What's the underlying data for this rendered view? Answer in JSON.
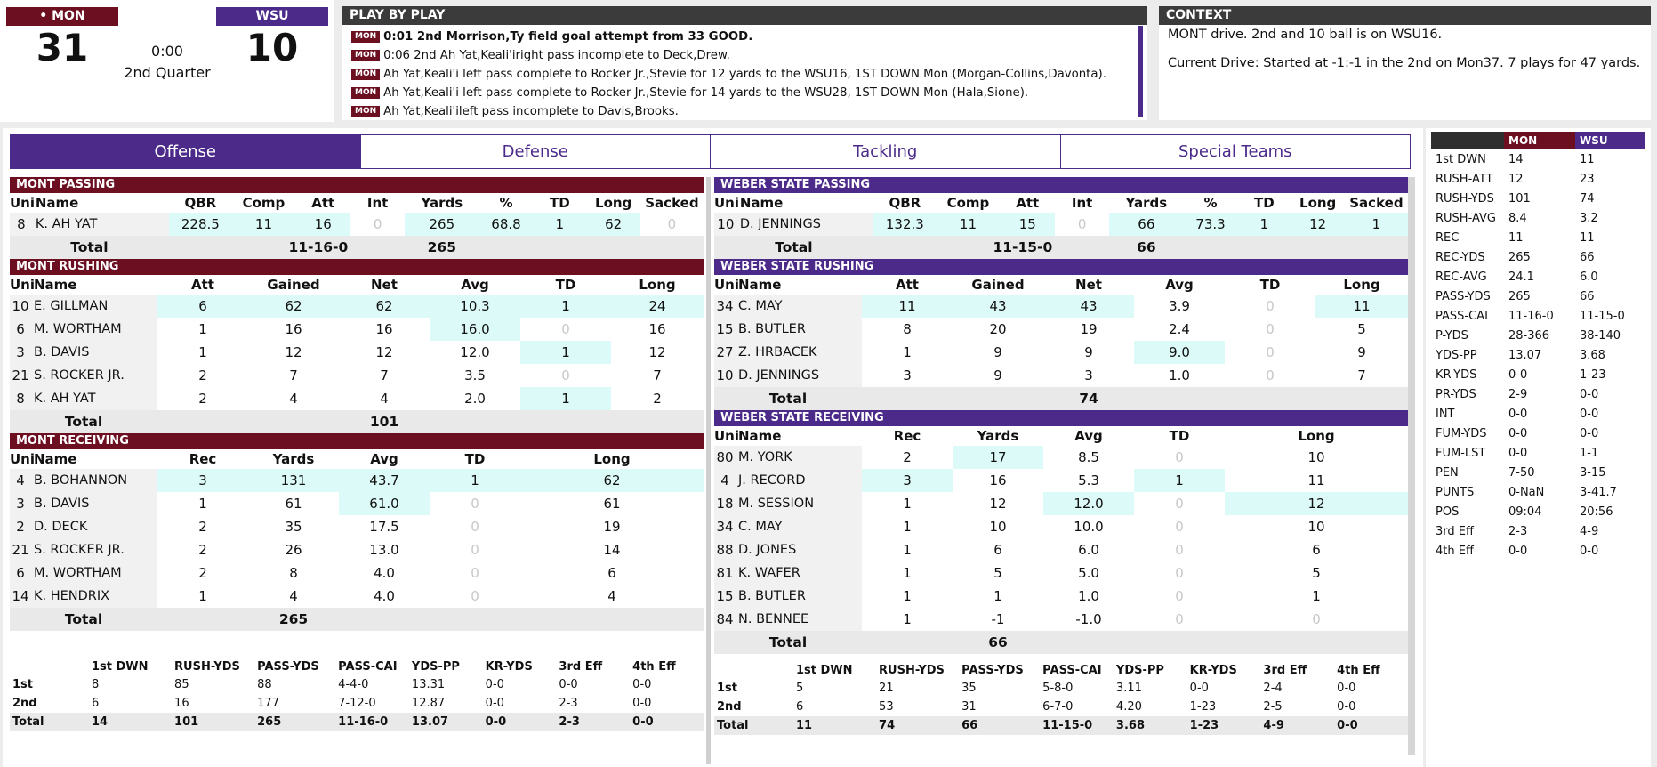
{
  "scoreboard": {
    "home_abbr": "MON",
    "home_indicator": "•",
    "away_abbr": "WSU",
    "home_score": "31",
    "away_score": "10",
    "clock": "0:00",
    "period": "2nd Quarter"
  },
  "colors": {
    "mon": "#6b0f21",
    "wsu": "#4b2a8a",
    "highlight": "#dcfbf8"
  },
  "pbp": {
    "title": "PLAY BY PLAY",
    "plays": [
      {
        "team": "MON",
        "text": "0:01 2nd Morrison,Ty field goal attempt from 33 GOOD.",
        "bold": true
      },
      {
        "team": "MON",
        "text": "0:06 2nd Ah Yat,Keali'iright pass incomplete to Deck,Drew.",
        "bold": false
      },
      {
        "team": "MON",
        "text": "Ah Yat,Keali'i left pass complete to Rocker Jr.,Stevie for 12 yards to the WSU16, 1ST DOWN Mon (Morgan-Collins,Davonta).",
        "bold": false
      },
      {
        "team": "MON",
        "text": "Ah Yat,Keali'i left pass complete to Rocker Jr.,Stevie for 14 yards to the WSU28, 1ST DOWN Mon (Hala,Sione).",
        "bold": false
      },
      {
        "team": "MON",
        "text": "Ah Yat,Keali'ileft pass incomplete to Davis,Brooks.",
        "bold": false
      }
    ]
  },
  "context": {
    "title": "CONTEXT",
    "line1": "MONT drive. 2nd and 10 ball is on WSU16.",
    "line2": "Current Drive: Started at -1:-1 in the 2nd on Mon37. 7 plays for 47 yards."
  },
  "tabs": [
    "Offense",
    "Defense",
    "Tackling",
    "Special Teams"
  ],
  "mont": {
    "passing": {
      "title": "MONT PASSING",
      "headers": [
        "Uni",
        "Name",
        "QBR",
        "Comp",
        "Att",
        "Int",
        "Yards",
        "%",
        "TD",
        "Long",
        "Sacked"
      ],
      "rows": [
        [
          "8",
          "K. AH YAT",
          "228.5",
          "11",
          "16",
          "0",
          "265",
          "68.8",
          "1",
          "62",
          "0"
        ]
      ],
      "hi": [
        [
          1,
          1,
          1,
          0,
          1,
          1,
          1,
          1,
          0
        ]
      ],
      "total": {
        "label": "Total",
        "cai": "11-16-0",
        "yards": "265"
      }
    },
    "rushing": {
      "title": "MONT RUSHING",
      "headers": [
        "Uni",
        "Name",
        "Att",
        "Gained",
        "Net",
        "Avg",
        "TD",
        "Long"
      ],
      "rows": [
        [
          "10",
          "E. GILLMAN",
          "6",
          "62",
          "62",
          "10.3",
          "1",
          "24"
        ],
        [
          "6",
          "M. WORTHAM",
          "1",
          "16",
          "16",
          "16.0",
          "0",
          "16"
        ],
        [
          "3",
          "B. DAVIS",
          "1",
          "12",
          "12",
          "12.0",
          "1",
          "12"
        ],
        [
          "21",
          "S. ROCKER JR.",
          "2",
          "7",
          "7",
          "3.5",
          "0",
          "7"
        ],
        [
          "8",
          "K. AH YAT",
          "2",
          "4",
          "4",
          "2.0",
          "1",
          "2"
        ]
      ],
      "hi": [
        [
          1,
          1,
          1,
          1,
          1,
          1
        ],
        [
          0,
          0,
          0,
          1,
          0,
          0
        ],
        [
          0,
          0,
          0,
          0,
          1,
          0
        ],
        [
          0,
          0,
          0,
          0,
          0,
          0
        ],
        [
          0,
          0,
          0,
          0,
          1,
          0
        ]
      ],
      "total": {
        "label": "Total",
        "net": "101"
      }
    },
    "receiving": {
      "title": "MONT RECEIVING",
      "headers": [
        "Uni",
        "Name",
        "Rec",
        "Yards",
        "Avg",
        "TD",
        "Long"
      ],
      "rows": [
        [
          "4",
          "B. BOHANNON",
          "3",
          "131",
          "43.7",
          "1",
          "62"
        ],
        [
          "3",
          "B. DAVIS",
          "1",
          "61",
          "61.0",
          "0",
          "61"
        ],
        [
          "2",
          "D. DECK",
          "2",
          "35",
          "17.5",
          "0",
          "19"
        ],
        [
          "21",
          "S. ROCKER JR.",
          "2",
          "26",
          "13.0",
          "0",
          "14"
        ],
        [
          "6",
          "M. WORTHAM",
          "2",
          "8",
          "4.0",
          "0",
          "6"
        ],
        [
          "14",
          "K. HENDRIX",
          "1",
          "4",
          "4.0",
          "0",
          "4"
        ]
      ],
      "hi": [
        [
          1,
          1,
          1,
          1,
          1
        ],
        [
          0,
          0,
          1,
          0,
          0
        ],
        [
          0,
          0,
          0,
          0,
          0
        ],
        [
          0,
          0,
          0,
          0,
          0
        ],
        [
          0,
          0,
          0,
          0,
          0
        ],
        [
          0,
          0,
          0,
          0,
          0
        ]
      ],
      "total": {
        "label": "Total",
        "yards": "265"
      }
    },
    "quarters": {
      "headers": [
        "",
        "1st DWN",
        "RUSH-YDS",
        "PASS-YDS",
        "PASS-CAI",
        "YDS-PP",
        "KR-YDS",
        "3rd Eff",
        "4th Eff"
      ],
      "rows": [
        [
          "1st",
          "8",
          "85",
          "88",
          "4-4-0",
          "13.31",
          "0-0",
          "0-0",
          "0-0"
        ],
        [
          "2nd",
          "6",
          "16",
          "177",
          "7-12-0",
          "12.87",
          "0-0",
          "2-3",
          "0-0"
        ],
        [
          "Total",
          "14",
          "101",
          "265",
          "11-16-0",
          "13.07",
          "0-0",
          "2-3",
          "0-0"
        ]
      ]
    }
  },
  "wsu": {
    "passing": {
      "title": "WEBER STATE PASSING",
      "headers": [
        "Uni",
        "Name",
        "QBR",
        "Comp",
        "Att",
        "Int",
        "Yards",
        "%",
        "TD",
        "Long",
        "Sacked"
      ],
      "rows": [
        [
          "10",
          "D. JENNINGS",
          "132.3",
          "11",
          "15",
          "0",
          "66",
          "73.3",
          "1",
          "12",
          "1"
        ]
      ],
      "hi": [
        [
          1,
          1,
          1,
          0,
          1,
          1,
          1,
          1,
          1
        ]
      ],
      "total": {
        "label": "Total",
        "cai": "11-15-0",
        "yards": "66"
      }
    },
    "rushing": {
      "title": "WEBER STATE RUSHING",
      "headers": [
        "Uni",
        "Name",
        "Att",
        "Gained",
        "Net",
        "Avg",
        "TD",
        "Long"
      ],
      "rows": [
        [
          "34",
          "C. MAY",
          "11",
          "43",
          "43",
          "3.9",
          "0",
          "11"
        ],
        [
          "15",
          "B. BUTLER",
          "8",
          "20",
          "19",
          "2.4",
          "0",
          "5"
        ],
        [
          "27",
          "Z. HRBACEK",
          "1",
          "9",
          "9",
          "9.0",
          "0",
          "9"
        ],
        [
          "10",
          "D. JENNINGS",
          "3",
          "9",
          "3",
          "1.0",
          "0",
          "7"
        ]
      ],
      "hi": [
        [
          1,
          1,
          1,
          0,
          0,
          1
        ],
        [
          0,
          0,
          0,
          0,
          0,
          0
        ],
        [
          0,
          0,
          0,
          1,
          0,
          0
        ],
        [
          0,
          0,
          0,
          0,
          0,
          0
        ]
      ],
      "total": {
        "label": "Total",
        "net": "74"
      }
    },
    "receiving": {
      "title": "WEBER STATE RECEIVING",
      "headers": [
        "Uni",
        "Name",
        "Rec",
        "Yards",
        "Avg",
        "TD",
        "Long"
      ],
      "rows": [
        [
          "80",
          "M. YORK",
          "2",
          "17",
          "8.5",
          "0",
          "10"
        ],
        [
          "4",
          "J. RECORD",
          "3",
          "16",
          "5.3",
          "1",
          "11"
        ],
        [
          "18",
          "M. SESSION",
          "1",
          "12",
          "12.0",
          "0",
          "12"
        ],
        [
          "34",
          "C. MAY",
          "1",
          "10",
          "10.0",
          "0",
          "10"
        ],
        [
          "88",
          "D. JONES",
          "1",
          "6",
          "6.0",
          "0",
          "6"
        ],
        [
          "81",
          "K. WAFER",
          "1",
          "5",
          "5.0",
          "0",
          "5"
        ],
        [
          "15",
          "B. BUTLER",
          "1",
          "1",
          "1.0",
          "0",
          "1"
        ],
        [
          "84",
          "N. BENNEE",
          "1",
          "-1",
          "-1.0",
          "0",
          "0"
        ]
      ],
      "hi": [
        [
          0,
          1,
          0,
          0,
          0
        ],
        [
          1,
          0,
          0,
          1,
          0
        ],
        [
          0,
          0,
          1,
          0,
          1
        ],
        [
          0,
          0,
          0,
          0,
          0
        ],
        [
          0,
          0,
          0,
          0,
          0
        ],
        [
          0,
          0,
          0,
          0,
          0
        ],
        [
          0,
          0,
          0,
          0,
          0
        ],
        [
          0,
          0,
          0,
          0,
          0
        ]
      ],
      "total": {
        "label": "Total",
        "yards": "66"
      }
    },
    "quarters": {
      "headers": [
        "",
        "1st DWN",
        "RUSH-YDS",
        "PASS-YDS",
        "PASS-CAI",
        "YDS-PP",
        "KR-YDS",
        "3rd Eff",
        "4th Eff"
      ],
      "rows": [
        [
          "1st",
          "5",
          "21",
          "35",
          "5-8-0",
          "3.11",
          "0-0",
          "2-4",
          "0-0"
        ],
        [
          "2nd",
          "6",
          "53",
          "31",
          "6-7-0",
          "4.20",
          "1-23",
          "2-5",
          "0-0"
        ],
        [
          "Total",
          "11",
          "74",
          "66",
          "11-15-0",
          "3.68",
          "1-23",
          "4-9",
          "0-0"
        ]
      ]
    }
  },
  "team_stats": {
    "headers": [
      "",
      "MON",
      "WSU"
    ],
    "rows": [
      [
        "1st DWN",
        "14",
        "11"
      ],
      [
        "RUSH-ATT",
        "12",
        "23"
      ],
      [
        "RUSH-YDS",
        "101",
        "74"
      ],
      [
        "RUSH-AVG",
        "8.4",
        "3.2"
      ],
      [
        "REC",
        "11",
        "11"
      ],
      [
        "REC-YDS",
        "265",
        "66"
      ],
      [
        "REC-AVG",
        "24.1",
        "6.0"
      ],
      [
        "PASS-YDS",
        "265",
        "66"
      ],
      [
        "PASS-CAI",
        "11-16-0",
        "11-15-0"
      ],
      [
        "P-YDS",
        "28-366",
        "38-140"
      ],
      [
        "YDS-PP",
        "13.07",
        "3.68"
      ],
      [
        "KR-YDS",
        "0-0",
        "1-23"
      ],
      [
        "PR-YDS",
        "2-9",
        "0-0"
      ],
      [
        "INT",
        "0-0",
        "0-0"
      ],
      [
        "FUM-YDS",
        "0-0",
        "0-0"
      ],
      [
        "FUM-LST",
        "0-0",
        "1-1"
      ],
      [
        "PEN",
        "7-50",
        "3-15"
      ],
      [
        "PUNTS",
        "0-NaN",
        "3-41.7"
      ],
      [
        "POS",
        "09:04",
        "20:56"
      ],
      [
        "3rd Eff",
        "2-3",
        "4-9"
      ],
      [
        "4th Eff",
        "0-0",
        "0-0"
      ]
    ]
  }
}
